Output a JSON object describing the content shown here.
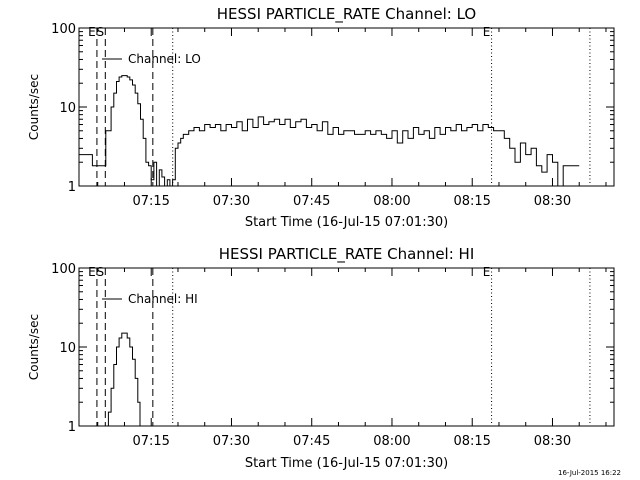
{
  "footer_timestamp": "16-Jul-2015 16:22",
  "chart_data": [
    {
      "type": "line",
      "title": "HESSI PARTICLE_RATE Channel: LO",
      "xlabel": "Start Time (16-Jul-15 07:01:30)",
      "ylabel": "Counts/sec",
      "yscale": "log",
      "ylim": [
        1,
        100
      ],
      "y_ticks": [
        "1",
        "10",
        "100"
      ],
      "xlim": [
        "07:01:30",
        "08:41:30"
      ],
      "x_ticks": [
        "07:15",
        "07:30",
        "07:45",
        "08:00",
        "08:15",
        "08:30"
      ],
      "legend": "Channel: LO",
      "markers": [
        {
          "time": "07:04:51",
          "label": "E",
          "style": "dashed"
        },
        {
          "time": "07:06:25",
          "label": "S",
          "style": "dashed"
        },
        {
          "time": "07:15:18",
          "label": "",
          "style": "dashed"
        },
        {
          "time": "07:19:01",
          "label": "",
          "style": "dotted"
        },
        {
          "time": "08:18:37",
          "label": "E",
          "style": "dotted"
        },
        {
          "time": "08:37:00",
          "label": "",
          "style": "dotted"
        }
      ],
      "series": [
        {
          "name": "Channel: LO",
          "x": [
            "07:01:30",
            "07:03:30",
            "07:04:00",
            "07:06:00",
            "07:06:30",
            "07:07:30",
            "07:08:00",
            "07:08:30",
            "07:09:00",
            "07:09:30",
            "07:10:00",
            "07:10:30",
            "07:11:00",
            "07:11:30",
            "07:12:00",
            "07:12:30",
            "07:13:00",
            "07:13:30",
            "07:14:00",
            "07:14:30",
            "07:15:00",
            "07:15:30",
            "07:16:00",
            "07:16:30",
            "07:17:00",
            "07:17:30",
            "07:18:00",
            "07:18:30",
            "07:19:00",
            "07:19:30",
            "07:20:00",
            "07:20:30",
            "07:21:00",
            "07:22:00",
            "07:23:00",
            "07:24:00",
            "07:25:00",
            "07:26:00",
            "07:27:00",
            "07:28:00",
            "07:29:00",
            "07:30:00",
            "07:31:00",
            "07:32:00",
            "07:33:00",
            "07:34:00",
            "07:35:00",
            "07:36:00",
            "07:37:00",
            "07:38:00",
            "07:39:00",
            "07:40:00",
            "07:41:00",
            "07:42:00",
            "07:43:00",
            "07:44:00",
            "07:45:00",
            "07:46:00",
            "07:47:00",
            "07:48:00",
            "07:49:00",
            "07:50:00",
            "07:51:00",
            "07:52:00",
            "07:53:00",
            "07:54:00",
            "07:55:00",
            "07:56:00",
            "07:57:00",
            "07:58:00",
            "07:59:00",
            "08:00:00",
            "08:01:00",
            "08:02:00",
            "08:03:00",
            "08:04:00",
            "08:05:00",
            "08:06:00",
            "08:07:00",
            "08:08:00",
            "08:09:00",
            "08:10:00",
            "08:11:00",
            "08:12:00",
            "08:13:00",
            "08:14:00",
            "08:15:00",
            "08:16:00",
            "08:17:00",
            "08:18:00",
            "08:19:00",
            "08:20:00",
            "08:21:00",
            "08:22:00",
            "08:23:00",
            "08:24:00",
            "08:25:00",
            "08:26:00",
            "08:27:00",
            "08:28:00",
            "08:29:00",
            "08:30:00",
            "08:31:00",
            "08:32:00",
            "08:33:00",
            "08:34:00",
            "08:35:00"
          ],
          "y": [
            2.5,
            2.5,
            1.8,
            1.8,
            5,
            10,
            15,
            21,
            24,
            25,
            25,
            24,
            22,
            19,
            15,
            11,
            7,
            4,
            2,
            1.8,
            1.2,
            2,
            1,
            1.6,
            1.3,
            1,
            1.2,
            1,
            1.2,
            3,
            3.5,
            4,
            4.5,
            5,
            5.5,
            5,
            6,
            5.5,
            6,
            5,
            6,
            5.5,
            6.5,
            5,
            7,
            5.5,
            7.5,
            6,
            6.5,
            7,
            6,
            7,
            5.5,
            6.5,
            7,
            5.5,
            6,
            5,
            6.5,
            4.5,
            5.5,
            4.5,
            5,
            5,
            4.5,
            4.5,
            5,
            4.5,
            5,
            4.5,
            4,
            5,
            3.5,
            5,
            4,
            5.5,
            4.5,
            5,
            4,
            5.5,
            4.5,
            5.5,
            5,
            6,
            5,
            5.5,
            6,
            5,
            6,
            5.5,
            5,
            5,
            4,
            3,
            2,
            3.5,
            2.5,
            3,
            1.8,
            1.5,
            2.5,
            2,
            1,
            1.8,
            1.8,
            1.8,
            1.8
          ]
        }
      ]
    },
    {
      "type": "line",
      "title": "HESSI PARTICLE_RATE Channel: HI",
      "xlabel": "Start Time (16-Jul-15 07:01:30)",
      "ylabel": "Counts/sec",
      "yscale": "log",
      "ylim": [
        1,
        100
      ],
      "y_ticks": [
        "1",
        "10",
        "100"
      ],
      "xlim": [
        "07:01:30",
        "08:41:30"
      ],
      "x_ticks": [
        "07:15",
        "07:30",
        "07:45",
        "08:00",
        "08:15",
        "08:30"
      ],
      "legend": "Channel: HI",
      "markers": [
        {
          "time": "07:04:51",
          "label": "E",
          "style": "dashed"
        },
        {
          "time": "07:06:25",
          "label": "S",
          "style": "dashed"
        },
        {
          "time": "07:15:18",
          "label": "",
          "style": "dashed"
        },
        {
          "time": "07:19:01",
          "label": "",
          "style": "dotted"
        },
        {
          "time": "08:18:37",
          "label": "E",
          "style": "dotted"
        },
        {
          "time": "08:37:00",
          "label": "",
          "style": "dotted"
        }
      ],
      "series": [
        {
          "name": "Channel: HI",
          "x": [
            "07:06:36",
            "07:07:00",
            "07:07:30",
            "07:08:00",
            "07:08:30",
            "07:09:00",
            "07:09:30",
            "07:10:00",
            "07:10:30",
            "07:11:00",
            "07:11:30",
            "07:12:00",
            "07:12:30",
            "07:12:54"
          ],
          "y": [
            1,
            1.5,
            3,
            6,
            10,
            13,
            15,
            15,
            13,
            10,
            7,
            4,
            2,
            1
          ]
        }
      ]
    }
  ]
}
